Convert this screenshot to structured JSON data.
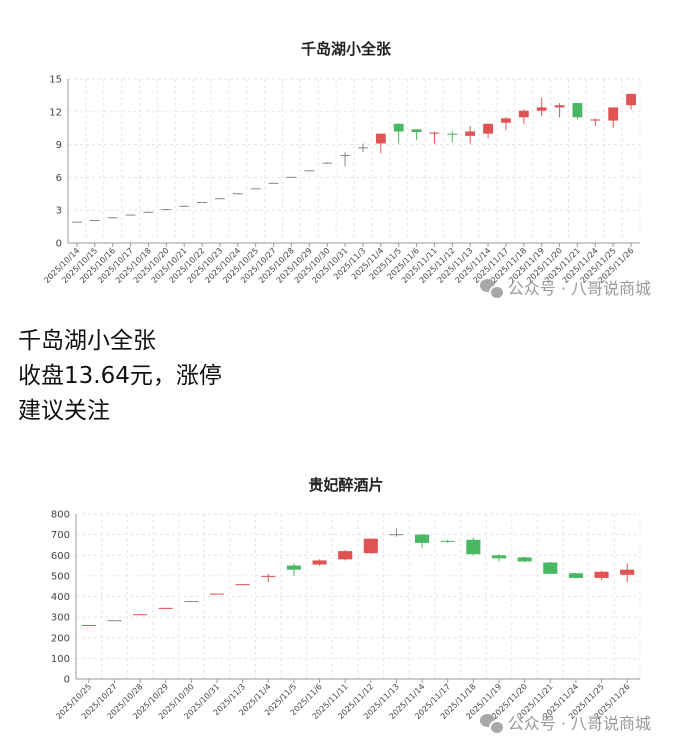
{
  "watermark": {
    "icon": "wechat-icon",
    "text": "公众号 · 八哥说商城"
  },
  "note": {
    "line1": "千岛湖小全张",
    "line2": "收盘13.64元，涨停",
    "line3": "建议关注"
  },
  "colors": {
    "up": "#e05353",
    "down": "#4ab862",
    "flat": "#888888",
    "grid": "#e6e6e6"
  },
  "chart_data": [
    {
      "type": "candlestick",
      "title": "千岛湖小全张",
      "ylim": [
        0,
        15
      ],
      "yticks": [
        0,
        3,
        6,
        9,
        12,
        15
      ],
      "grid": true,
      "categories": [
        "2025/10/14",
        "2025/10/15",
        "2025/10/16",
        "2025/10/17",
        "2025/10/18",
        "2025/10/20",
        "2025/10/21",
        "2025/10/22",
        "2025/10/23",
        "2025/10/24",
        "2025/10/25",
        "2025/10/27",
        "2025/10/28",
        "2025/10/29",
        "2025/10/30",
        "2025/10/31",
        "2025/11/3",
        "2025/11/4",
        "2025/11/5",
        "2025/11/6",
        "2025/11/11",
        "2025/11/12",
        "2025/11/13",
        "2025/11/14",
        "2025/11/17",
        "2025/11/18",
        "2025/11/19",
        "2025/11/20",
        "2025/11/21",
        "2025/11/24",
        "2025/11/25",
        "2025/11/26"
      ],
      "open": [
        1.9,
        2.05,
        2.3,
        2.55,
        2.8,
        3.05,
        3.35,
        3.7,
        4.05,
        4.5,
        4.95,
        5.45,
        6.0,
        6.6,
        7.3,
        8.0,
        8.7,
        9.1,
        10.9,
        10.4,
        10.0,
        10.0,
        9.8,
        10.0,
        11.0,
        11.5,
        12.1,
        12.4,
        12.8,
        11.2,
        11.2,
        12.6
      ],
      "close": [
        1.95,
        2.1,
        2.35,
        2.6,
        2.85,
        3.1,
        3.4,
        3.75,
        4.1,
        4.55,
        5.0,
        5.5,
        6.05,
        6.65,
        7.35,
        8.05,
        8.75,
        10.0,
        10.2,
        10.15,
        10.1,
        9.9,
        10.2,
        10.9,
        11.4,
        12.1,
        12.4,
        12.6,
        11.5,
        11.3,
        12.4,
        13.64
      ],
      "high": [
        1.95,
        2.1,
        2.35,
        2.6,
        2.85,
        3.1,
        3.4,
        3.75,
        4.1,
        4.55,
        5.0,
        5.5,
        6.05,
        6.65,
        7.4,
        8.3,
        9.1,
        10.0,
        10.95,
        10.4,
        10.2,
        10.2,
        10.7,
        10.95,
        11.5,
        12.2,
        13.3,
        12.8,
        12.8,
        11.4,
        12.4,
        13.64
      ],
      "low": [
        1.9,
        2.05,
        2.3,
        2.55,
        2.8,
        3.05,
        3.35,
        3.7,
        4.05,
        4.5,
        4.95,
        5.45,
        6.0,
        6.6,
        7.3,
        7.0,
        8.3,
        8.2,
        9.1,
        9.4,
        9.1,
        9.2,
        9.1,
        9.6,
        10.3,
        10.9,
        11.6,
        11.5,
        11.3,
        10.7,
        10.5,
        12.2
      ]
    },
    {
      "type": "candlestick",
      "title": "贵妃醉酒片",
      "ylim": [
        0,
        800
      ],
      "yticks": [
        0,
        100,
        200,
        300,
        400,
        500,
        600,
        700,
        800
      ],
      "grid": true,
      "categories": [
        "2025/10/25",
        "2025/10/27",
        "2025/10/28",
        "2025/10/29",
        "2025/10/30",
        "2025/10/31",
        "2025/11/3",
        "2025/11/4",
        "2025/11/5",
        "2025/11/6",
        "2025/11/11",
        "2025/11/12",
        "2025/11/13",
        "2025/11/14",
        "2025/11/17",
        "2025/11/18",
        "2025/11/19",
        "2025/11/20",
        "2025/11/21",
        "2025/11/24",
        "2025/11/25",
        "2025/11/26"
      ],
      "open": [
        258,
        282,
        310,
        340,
        375,
        410,
        455,
        495,
        550,
        555,
        580,
        610,
        700,
        700,
        670,
        675,
        600,
        590,
        565,
        513,
        490,
        505
      ],
      "close": [
        262,
        285,
        314,
        345,
        378,
        414,
        460,
        500,
        530,
        575,
        620,
        680,
        702,
        660,
        665,
        605,
        585,
        570,
        510,
        490,
        520,
        530
      ],
      "high": [
        262,
        285,
        314,
        345,
        378,
        414,
        460,
        510,
        560,
        580,
        625,
        682,
        730,
        705,
        675,
        685,
        605,
        595,
        568,
        515,
        525,
        560
      ],
      "low": [
        258,
        282,
        310,
        340,
        375,
        410,
        455,
        470,
        500,
        550,
        575,
        608,
        690,
        635,
        660,
        600,
        570,
        565,
        510,
        488,
        480,
        470
      ]
    }
  ]
}
